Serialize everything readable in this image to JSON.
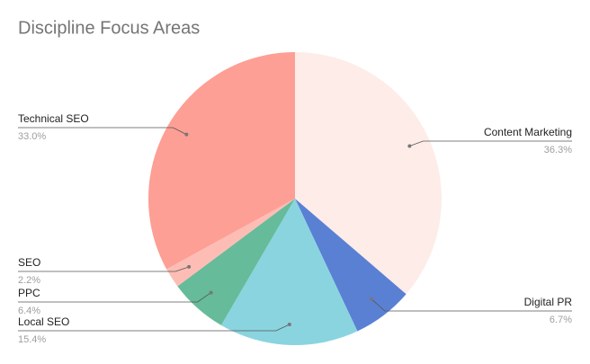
{
  "chart_data": {
    "type": "pie",
    "title": "Discipline Focus Areas",
    "categories": [
      "Content Marketing",
      "Digital PR",
      "Local SEO",
      "PPC",
      "SEO",
      "Technical SEO"
    ],
    "values": [
      36.3,
      6.7,
      15.4,
      6.4,
      2.2,
      33.0
    ],
    "value_labels": [
      "36.3%",
      "6.7%",
      "15.4%",
      "6.4%",
      "2.2%",
      "33.0%"
    ],
    "colors": [
      "#fdece8",
      "#5a80d4",
      "#8ad4e0",
      "#66bb9a",
      "#fdbdb5",
      "#fd9f94"
    ]
  }
}
